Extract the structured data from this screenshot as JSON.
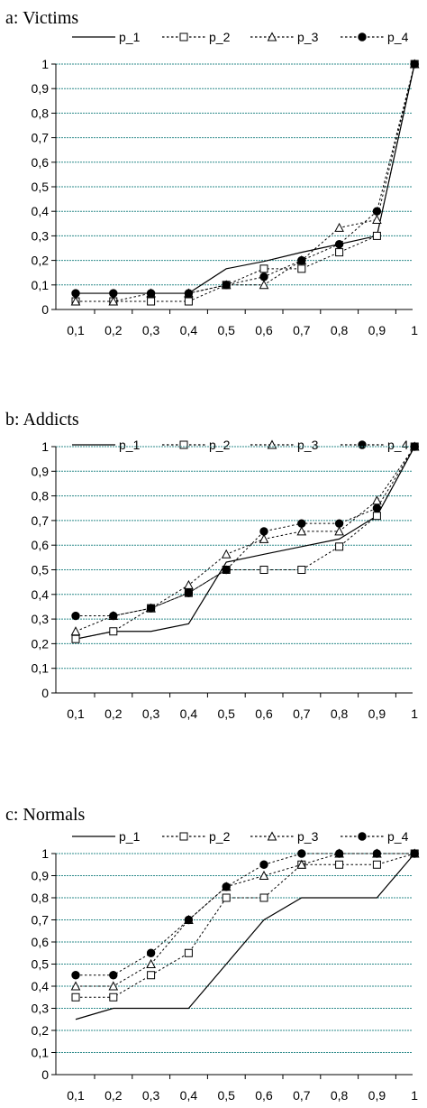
{
  "chart_data": [
    {
      "type": "line",
      "title": "a: Victims",
      "x": [
        "0,1",
        "0,2",
        "0,3",
        "0,4",
        "0,5",
        "0,6",
        "0,7",
        "0,8",
        "0,9",
        "1"
      ],
      "y_ticks": [
        "0",
        "0,1",
        "0,2",
        "0,3",
        "0,4",
        "0,5",
        "0,6",
        "0,7",
        "0,8",
        "0,9",
        "1"
      ],
      "ylim": [
        0,
        1
      ],
      "grid": "horizontal",
      "legend": "top",
      "series": [
        {
          "name": "p_1",
          "values": [
            0.066,
            0.066,
            0.066,
            0.066,
            0.166,
            0.196,
            0.233,
            0.266,
            0.3,
            1.0
          ]
        },
        {
          "name": "p_2",
          "values": [
            0.033,
            0.033,
            0.033,
            0.033,
            0.1,
            0.166,
            0.166,
            0.233,
            0.3,
            1.0
          ]
        },
        {
          "name": "p_3",
          "values": [
            0.033,
            0.033,
            0.066,
            0.066,
            0.1,
            0.1,
            0.2,
            0.333,
            0.366,
            1.0
          ]
        },
        {
          "name": "p_4",
          "values": [
            0.066,
            0.066,
            0.066,
            0.066,
            0.1,
            0.133,
            0.2,
            0.266,
            0.4,
            1.0
          ]
        }
      ]
    },
    {
      "type": "line",
      "title": "b: Addicts",
      "x": [
        "0,1",
        "0,2",
        "0,3",
        "0,4",
        "0,5",
        "0,6",
        "0,7",
        "0,8",
        "0,9",
        "1"
      ],
      "y_ticks": [
        "0",
        "0,1",
        "0,2",
        "0,3",
        "0,4",
        "0,5",
        "0,6",
        "0,7",
        "0,8",
        "0,9",
        "1"
      ],
      "ylim": [
        0,
        1
      ],
      "grid": "horizontal",
      "legend": "top",
      "series": [
        {
          "name": "p_1",
          "values": [
            0.219,
            0.25,
            0.25,
            0.281,
            0.531,
            0.563,
            0.594,
            0.625,
            0.719,
            1.0
          ]
        },
        {
          "name": "p_2",
          "values": [
            0.219,
            0.25,
            0.344,
            0.406,
            0.5,
            0.5,
            0.5,
            0.594,
            0.719,
            1.0
          ]
        },
        {
          "name": "p_3",
          "values": [
            0.25,
            0.313,
            0.344,
            0.438,
            0.563,
            0.625,
            0.656,
            0.656,
            0.781,
            1.0
          ]
        },
        {
          "name": "p_4",
          "values": [
            0.313,
            0.313,
            0.344,
            0.406,
            0.5,
            0.656,
            0.688,
            0.688,
            0.75,
            1.0
          ]
        }
      ]
    },
    {
      "type": "line",
      "title": "c: Normals",
      "x": [
        "0,1",
        "0,2",
        "0,3",
        "0,4",
        "0,5",
        "0,6",
        "0,7",
        "0,8",
        "0,9",
        "1"
      ],
      "y_ticks": [
        "0",
        "0,1",
        "0,2",
        "0,3",
        "0,4",
        "0,5",
        "0,6",
        "0,7",
        "0,8",
        "0,9",
        "1"
      ],
      "ylim": [
        0,
        1
      ],
      "grid": "horizontal",
      "legend": "top",
      "series": [
        {
          "name": "p_1",
          "values": [
            0.25,
            0.3,
            0.3,
            0.3,
            0.5,
            0.7,
            0.8,
            0.8,
            0.8,
            1.0
          ]
        },
        {
          "name": "p_2",
          "values": [
            0.35,
            0.35,
            0.45,
            0.55,
            0.8,
            0.8,
            0.95,
            0.95,
            0.95,
            1.0
          ]
        },
        {
          "name": "p_3",
          "values": [
            0.4,
            0.4,
            0.5,
            0.7,
            0.85,
            0.9,
            0.95,
            1.0,
            1.0,
            1.0
          ]
        },
        {
          "name": "p_4",
          "values": [
            0.45,
            0.45,
            0.55,
            0.7,
            0.85,
            0.95,
            1.0,
            1.0,
            1.0,
            1.0
          ]
        }
      ]
    }
  ],
  "colors": {
    "grid": "#2e8b8b",
    "axis": "#000000",
    "line": "#000000"
  }
}
